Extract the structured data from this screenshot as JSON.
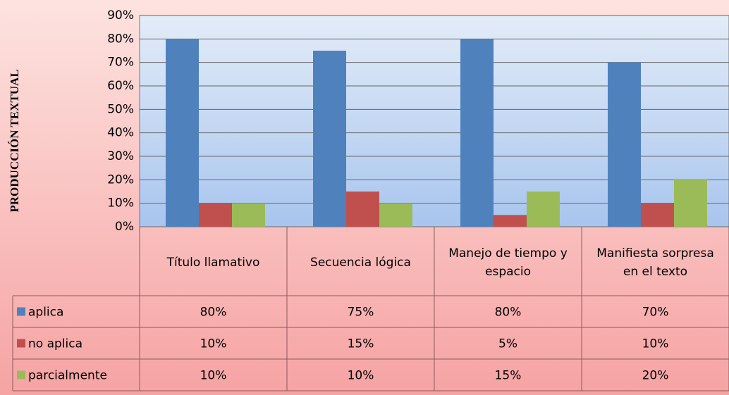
{
  "chart_data": {
    "type": "bar",
    "y_label": "PRODUCCIÓN TEXTUAL",
    "categories": [
      "Título llamativo",
      "Secuencia lógica",
      "Manejo de tiempo y espacio",
      "Manifiesta sorpresa en el texto"
    ],
    "series": [
      {
        "name": "aplica",
        "color": "#4f81bd",
        "values": [
          80,
          75,
          80,
          70
        ],
        "value_labels": [
          "80%",
          "75%",
          "80%",
          "70%"
        ]
      },
      {
        "name": "no aplica",
        "color": "#c0504d",
        "values": [
          10,
          15,
          5,
          10
        ],
        "value_labels": [
          "10%",
          "15%",
          "5%",
          "10%"
        ]
      },
      {
        "name": "parcialmente",
        "color": "#9bbb59",
        "values": [
          10,
          10,
          15,
          20
        ],
        "value_labels": [
          "10%",
          "10%",
          "15%",
          "20%"
        ]
      }
    ],
    "ylim": [
      0,
      90
    ],
    "yticks": [
      {
        "value": 0,
        "label": "0%"
      },
      {
        "value": 10,
        "label": "10%"
      },
      {
        "value": 20,
        "label": "20%"
      },
      {
        "value": 30,
        "label": "30%"
      },
      {
        "value": 40,
        "label": "40%"
      },
      {
        "value": 50,
        "label": "50%"
      },
      {
        "value": 60,
        "label": "60%"
      },
      {
        "value": 70,
        "label": "70%"
      },
      {
        "value": 80,
        "label": "80%"
      },
      {
        "value": 90,
        "label": "90%"
      }
    ],
    "grid": true
  }
}
